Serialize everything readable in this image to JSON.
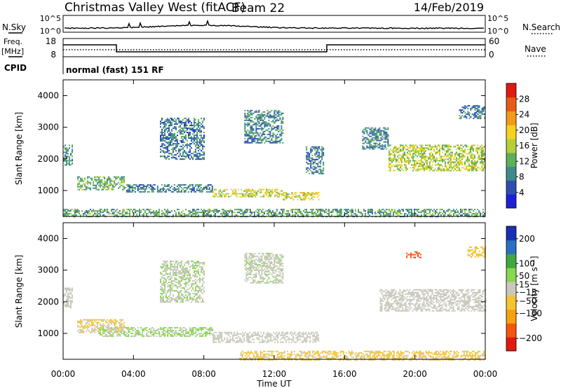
{
  "header": {
    "title": "Christmas Valley West (fitACF)",
    "beam": "Beam 22",
    "date": "14/Feb/2019"
  },
  "top_panels": {
    "nsky_label": "N.Sky",
    "nsearch_label": "N.Search",
    "noise_ticks": [
      "10^5",
      "10^0"
    ],
    "freq_label": [
      "Freq.",
      "[MHz]"
    ],
    "freq_ticks": [
      "18",
      "8"
    ],
    "nave_label": "Nave",
    "nave_ticks": [
      "60",
      "0"
    ],
    "cpid_label": "CPID",
    "cpid_text": "normal (fast) 151 RF"
  },
  "colors": {
    "power_scale": [
      "#1f1fd8",
      "#2e4fb0",
      "#3f8a8c",
      "#5fae5a",
      "#b6cf3a",
      "#f6d21f",
      "#f39a1a",
      "#e85a18",
      "#e01a10"
    ],
    "velocity_scale": [
      "#e01a10",
      "#f5560d",
      "#f6a10f",
      "#f4c430",
      "#c8c8bc",
      "#86d84c",
      "#3fa83f",
      "#2a6fc0",
      "#1a2fb0"
    ]
  },
  "chart_data": [
    {
      "type": "heatmap",
      "name": "power",
      "xlabel": "Time UT",
      "ylabel": "Slant Range [km]",
      "x_ticks": [
        "00:00",
        "04:00",
        "08:00",
        "12:00",
        "16:00",
        "20:00",
        "00:00"
      ],
      "xlim_hours": [
        0,
        24
      ],
      "y_ticks": [
        1000,
        2000,
        3000,
        4000
      ],
      "ylim": [
        180,
        4500
      ],
      "colorbar": {
        "label": "Power [dB]",
        "ticks": [
          4,
          8,
          12,
          16,
          20,
          24,
          28
        ],
        "range": [
          0,
          32
        ]
      },
      "echo_regions": [
        {
          "t0": 0.0,
          "t1": 0.5,
          "r0": 1800,
          "r1": 2450,
          "level": 10
        },
        {
          "t0": 0.8,
          "t1": 3.5,
          "r0": 1050,
          "r1": 1450,
          "level": 12
        },
        {
          "t0": 3.5,
          "t1": 8.5,
          "r0": 950,
          "r1": 1200,
          "level": 9
        },
        {
          "t0": 8.5,
          "t1": 12.5,
          "r0": 800,
          "r1": 1050,
          "level": 17
        },
        {
          "t0": 12.5,
          "t1": 14.5,
          "r0": 700,
          "r1": 950,
          "level": 18
        },
        {
          "t0": 0.0,
          "t1": 24.0,
          "r0": 180,
          "r1": 420,
          "level": 11
        },
        {
          "t0": 18.5,
          "t1": 24.0,
          "r0": 1650,
          "r1": 2450,
          "level": 16
        },
        {
          "t0": 5.5,
          "t1": 8.0,
          "r0": 2000,
          "r1": 3300,
          "level": 8
        },
        {
          "t0": 10.3,
          "t1": 12.5,
          "r0": 2500,
          "r1": 3550,
          "level": 9
        },
        {
          "t0": 13.8,
          "t1": 14.8,
          "r0": 1550,
          "r1": 2400,
          "level": 8
        },
        {
          "t0": 17.0,
          "t1": 18.5,
          "r0": 2300,
          "r1": 3000,
          "level": 9
        },
        {
          "t0": 22.5,
          "t1": 24.0,
          "r0": 3300,
          "r1": 3700,
          "level": 8
        }
      ]
    },
    {
      "type": "heatmap",
      "name": "velocity",
      "xlabel": "Time UT",
      "ylabel": "Slant Range [km]",
      "x_ticks": [
        "00:00",
        "04:00",
        "08:00",
        "12:00",
        "16:00",
        "20:00",
        "00:00"
      ],
      "xlim_hours": [
        0,
        24
      ],
      "y_ticks": [
        1000,
        2000,
        3000,
        4000
      ],
      "ylim": [
        180,
        4500
      ],
      "colorbar": {
        "label": "Velocity [m s⁻¹]",
        "ticks": [
          "-200",
          "-100",
          "-50",
          "-15",
          "15",
          "50",
          "100",
          "200"
        ],
        "range": [
          -250,
          250
        ]
      },
      "echo_regions": [
        {
          "t0": 0.0,
          "t1": 0.5,
          "r0": 1800,
          "r1": 2450,
          "level": 0
        },
        {
          "t0": 0.8,
          "t1": 3.5,
          "r0": 1050,
          "r1": 1450,
          "level": -30
        },
        {
          "t0": 2.0,
          "t1": 8.5,
          "r0": 900,
          "r1": 1200,
          "level": 30
        },
        {
          "t0": 8.5,
          "t1": 14.5,
          "r0": 700,
          "r1": 1050,
          "level": 0
        },
        {
          "t0": 10.0,
          "t1": 24.0,
          "r0": 180,
          "r1": 450,
          "level": -40
        },
        {
          "t0": 18.0,
          "t1": 24.0,
          "r0": 1700,
          "r1": 2400,
          "level": 0
        },
        {
          "t0": 5.5,
          "t1": 8.0,
          "r0": 2000,
          "r1": 3300,
          "level": 20
        },
        {
          "t0": 10.3,
          "t1": 12.5,
          "r0": 2600,
          "r1": 3550,
          "level": 10
        },
        {
          "t0": 19.5,
          "t1": 20.3,
          "r0": 3400,
          "r1": 3600,
          "level": -180
        },
        {
          "t0": 23.0,
          "t1": 24.0,
          "r0": 3400,
          "r1": 3750,
          "level": -60
        }
      ]
    }
  ]
}
